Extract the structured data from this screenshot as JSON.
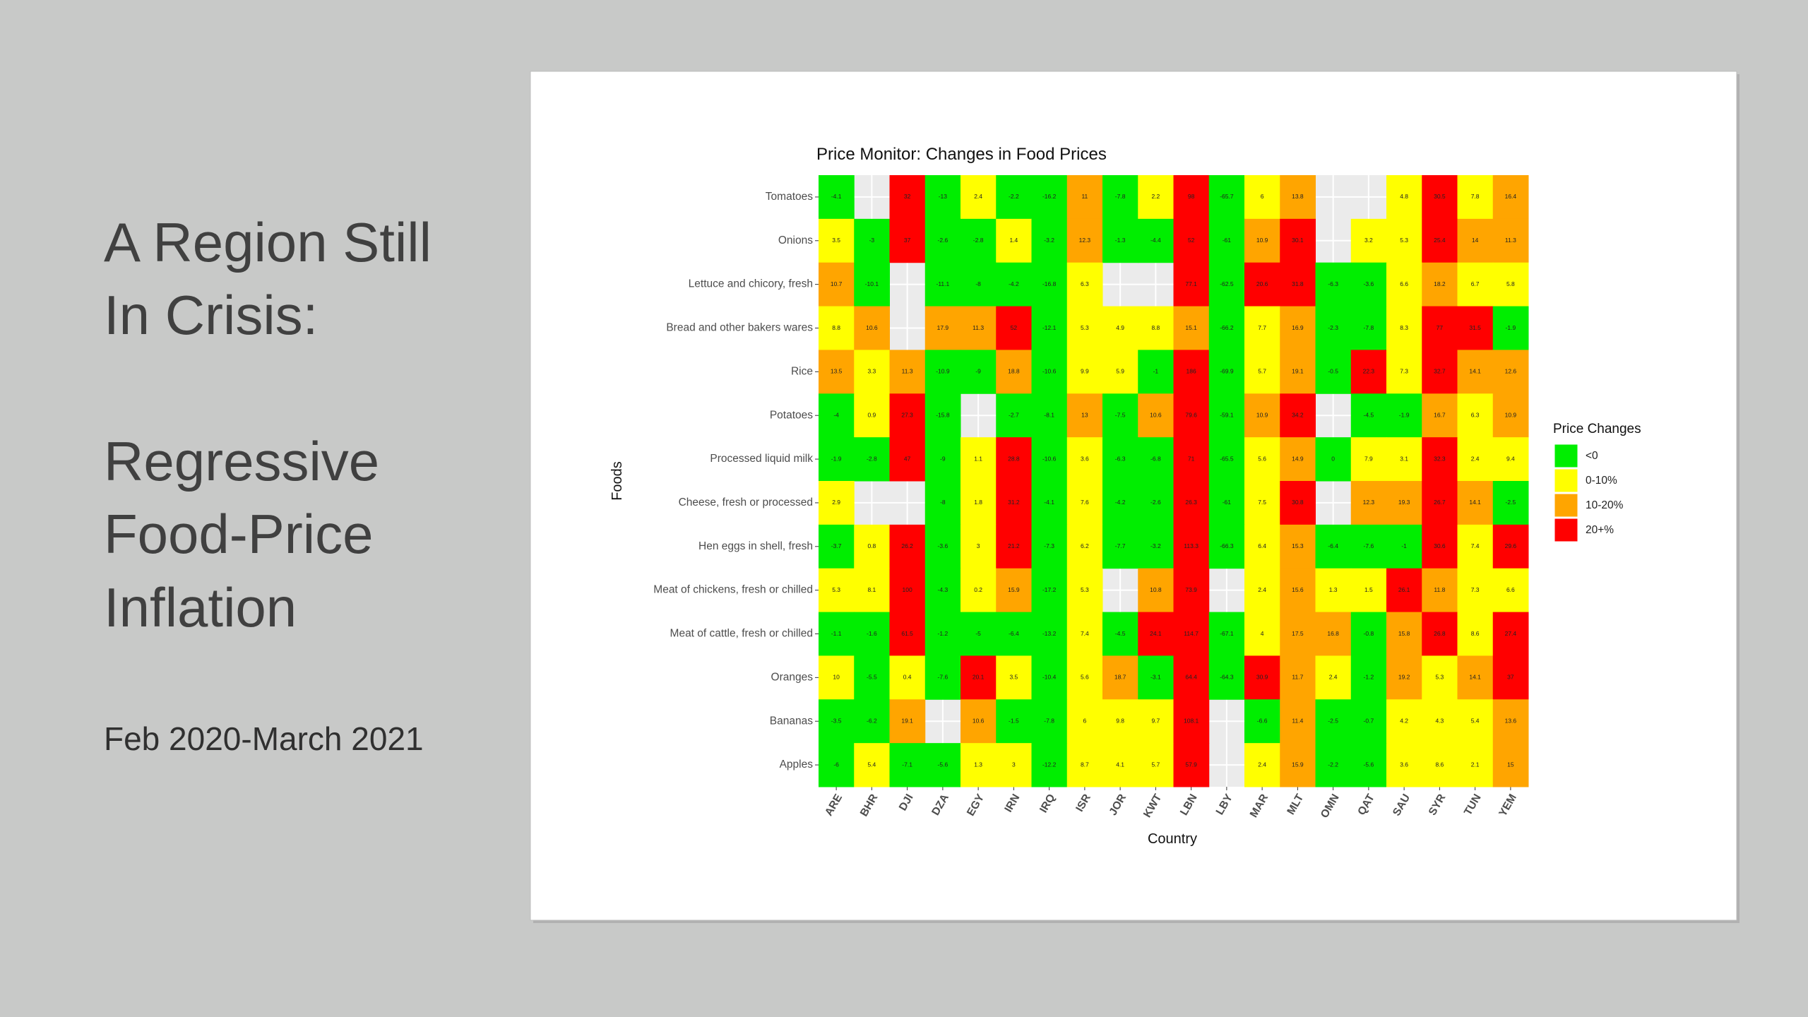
{
  "slide": {
    "heading": [
      "A Region Still",
      "In Crisis:"
    ],
    "subheading": [
      "Regressive",
      "Food-Price",
      "Inflation"
    ],
    "date": "Feb 2020-March 2021"
  },
  "chart_data": {
    "type": "heatmap",
    "title": "Price Monitor: Changes in Food Prices",
    "x_label": "Country",
    "y_label": "Foods",
    "categories": [
      "ARE",
      "BHR",
      "DJI",
      "DZA",
      "EGY",
      "IRN",
      "IRQ",
      "ISR",
      "JOR",
      "KWT",
      "LBN",
      "LBY",
      "MAR",
      "MLT",
      "OMN",
      "QAT",
      "SAU",
      "SYR",
      "TUN",
      "YEM"
    ],
    "rows": [
      "Tomatoes",
      "Onions",
      "Lettuce and chicory, fresh",
      "Bread and other bakers wares",
      "Rice",
      "Potatoes",
      "Processed liquid milk",
      "Cheese, fresh or processed",
      "Hen eggs in shell, fresh",
      "Meat of chickens, fresh or chilled",
      "Meat of cattle, fresh or chilled",
      "Oranges",
      "Bananas",
      "Apples"
    ],
    "values": [
      [
        -4.1,
        null,
        32,
        -13,
        2.4,
        -2.2,
        -16.2,
        11,
        -7.8,
        2.2,
        98,
        -65.7,
        6,
        13.8,
        null,
        null,
        4.8,
        30.5,
        7.8,
        16.4
      ],
      [
        3.5,
        -3,
        37,
        -2.6,
        -2.8,
        1.4,
        -3.2,
        12.3,
        -1.3,
        -4.4,
        52,
        -61,
        10.9,
        30.1,
        null,
        3.2,
        5.3,
        25.4,
        14,
        11.3
      ],
      [
        10.7,
        -10.1,
        null,
        -11.1,
        -8,
        -4.2,
        -16.8,
        6.3,
        null,
        null,
        77.1,
        -62.5,
        20.6,
        31.8,
        -6.3,
        -3.6,
        6.6,
        18.2,
        6.7,
        5.8
      ],
      [
        8.8,
        10.6,
        null,
        17.9,
        11.3,
        52,
        -12.1,
        5.3,
        4.9,
        8.8,
        15.1,
        -66.2,
        7.7,
        16.9,
        -2.3,
        -7.8,
        8.3,
        77,
        31.5,
        -1.9
      ],
      [
        13.5,
        3.3,
        11.3,
        -10.9,
        -9,
        18.8,
        -10.6,
        9.9,
        5.9,
        -1,
        186,
        -69.9,
        5.7,
        19.1,
        -0.5,
        22.3,
        7.3,
        32.7,
        14.1,
        12.6
      ],
      [
        -4,
        0.9,
        27.3,
        -15.8,
        null,
        -2.7,
        -8.1,
        13,
        -7.5,
        10.6,
        79.6,
        -59.1,
        10.9,
        34.2,
        null,
        -4.5,
        -1.9,
        16.7,
        6.3,
        10.9
      ],
      [
        -1.9,
        -2.8,
        47,
        -9,
        1.1,
        28.8,
        -10.6,
        3.6,
        -6.3,
        -6.8,
        71,
        -65.5,
        5.6,
        14.9,
        0,
        7.9,
        3.1,
        32.3,
        2.4,
        9.4
      ],
      [
        2.9,
        null,
        null,
        -8,
        1.8,
        31.2,
        -4.1,
        7.6,
        -4.2,
        -2.6,
        26.3,
        -61,
        7.5,
        30.8,
        null,
        12.3,
        19.3,
        26.7,
        14.1,
        -2.5
      ],
      [
        -3.7,
        0.8,
        26.2,
        -3.6,
        3,
        21.2,
        -7.3,
        6.2,
        -7.7,
        -3.2,
        113.3,
        -66.3,
        6.4,
        15.3,
        -6.4,
        -7.6,
        -1,
        30.6,
        7.4,
        29.6
      ],
      [
        5.3,
        8.1,
        100,
        -4.3,
        0.2,
        15.9,
        -17.2,
        5.3,
        null,
        10.8,
        73.9,
        null,
        2.4,
        15.6,
        1.3,
        1.5,
        26.1,
        11.8,
        7.3,
        6.6
      ],
      [
        -1.1,
        -1.6,
        61.5,
        -1.2,
        -5,
        -6.4,
        -13.2,
        7.4,
        -4.5,
        24.1,
        114.7,
        -67.1,
        4,
        17.5,
        16.8,
        -0.8,
        15.8,
        26.8,
        8.6,
        27.4
      ],
      [
        10,
        -5.5,
        0.4,
        -7.6,
        20.1,
        3.5,
        -10.4,
        5.6,
        18.7,
        -3.1,
        64.4,
        -64.3,
        30.9,
        11.7,
        2.4,
        -1.2,
        19.2,
        5.3,
        14.1,
        37
      ],
      [
        -3.5,
        -6.2,
        19.1,
        null,
        10.6,
        -1.5,
        -7.8,
        6,
        9.8,
        9.7,
        108.1,
        null,
        -6.6,
        11.4,
        -2.5,
        -0.7,
        4.2,
        4.3,
        5.4,
        13.6
      ],
      [
        -6,
        5.4,
        -7.1,
        -5.6,
        1.3,
        3,
        -12.2,
        8.7,
        4.1,
        5.7,
        57.9,
        null,
        2.4,
        15.9,
        -2.2,
        -5.6,
        3.6,
        8.6,
        2.1,
        15
      ]
    ],
    "legend": {
      "title": "Price Changes",
      "position": "right",
      "breaks": [
        0,
        10,
        20
      ],
      "items": [
        {
          "label": "<0",
          "color": "#00ee00"
        },
        {
          "label": "0-10%",
          "color": "#ffff00"
        },
        {
          "label": "10-20%",
          "color": "#ffa500"
        },
        {
          "label": "20+%",
          "color": "#ff0000"
        }
      ]
    }
  }
}
